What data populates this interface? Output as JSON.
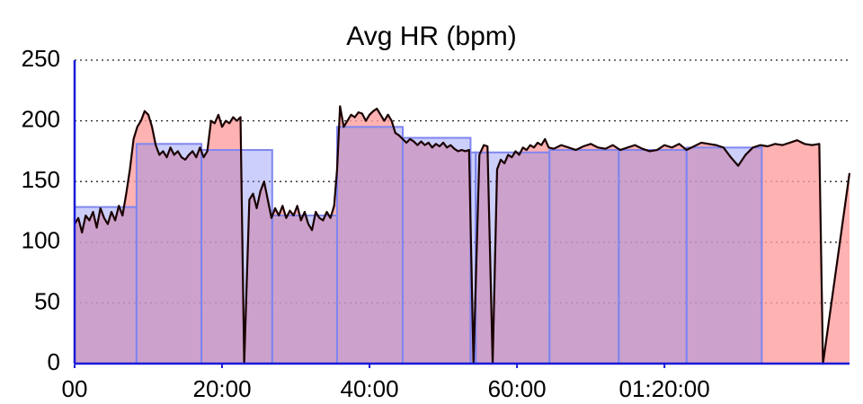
{
  "chart_data": {
    "type": "area",
    "title": "Avg HR (bpm)",
    "xlim": [
      0,
      105.1
    ],
    "ylim": [
      0,
      250
    ],
    "xticks": [
      {
        "value": 0,
        "label": "00"
      },
      {
        "value": 20,
        "label": "20:00"
      },
      {
        "value": 40,
        "label": "40:00"
      },
      {
        "value": 60,
        "label": "60:00"
      },
      {
        "value": 80,
        "label": "01:20:00"
      }
    ],
    "yticks": [
      0,
      50,
      100,
      150,
      200,
      250
    ],
    "grid": true,
    "series": [
      {
        "color": "#ff9f9f",
        "line_color": "#1a0000",
        "x": [
          0,
          0.5,
          1,
          1.5,
          2,
          2.5,
          3,
          3.5,
          4,
          4.5,
          5,
          5.5,
          6,
          6.5,
          7,
          7.5,
          8,
          8.5,
          9,
          9.5,
          10,
          10.5,
          11,
          11.5,
          12,
          12.5,
          13,
          13.5,
          14,
          14.5,
          15,
          15.5,
          16,
          16.5,
          17,
          17.5,
          18,
          18.5,
          19,
          19.5,
          20,
          20.5,
          21,
          21.5,
          22,
          22.5,
          23,
          23.7,
          24.2,
          24.7,
          25.2,
          25.7,
          26.2,
          26.7,
          27.2,
          27.7,
          28.2,
          28.7,
          29.2,
          29.7,
          30.2,
          30.7,
          31.2,
          31.7,
          32.2,
          32.7,
          33.2,
          33.7,
          34.2,
          34.7,
          35.2,
          35.6,
          36,
          36.5,
          37,
          37.5,
          38,
          38.5,
          39,
          39.5,
          40,
          40.5,
          41,
          41.5,
          42,
          42.5,
          43,
          43.5,
          44,
          44.5,
          45,
          45.5,
          46,
          46.5,
          47,
          47.5,
          48,
          48.5,
          49,
          49.5,
          50,
          50.5,
          51,
          51.5,
          52,
          52.5,
          53,
          53.5,
          54.1,
          54.9,
          55.5,
          56,
          56.7,
          57.3,
          57.8,
          58.3,
          58.8,
          59.3,
          59.8,
          60.3,
          60.8,
          61.3,
          61.8,
          62.3,
          62.8,
          63.3,
          63.8,
          64.3,
          65,
          66,
          67,
          68,
          69,
          70,
          71,
          72,
          73,
          74,
          75,
          76,
          77,
          78,
          79,
          80,
          81,
          82,
          83,
          84,
          85,
          86,
          87,
          88,
          89,
          90,
          91,
          92,
          93,
          94,
          95,
          96,
          97,
          98,
          99,
          100,
          101,
          101.5,
          105.1
        ],
        "values": [
          115,
          120,
          108,
          122,
          118,
          125,
          112,
          128,
          120,
          115,
          125,
          118,
          130,
          122,
          140,
          160,
          185,
          195,
          200,
          208,
          205,
          195,
          180,
          172,
          175,
          170,
          178,
          172,
          175,
          170,
          168,
          172,
          175,
          170,
          178,
          170,
          175,
          200,
          198,
          205,
          195,
          200,
          198,
          203,
          200,
          203,
          0,
          135,
          140,
          128,
          142,
          150,
          135,
          120,
          128,
          122,
          130,
          120,
          126,
          122,
          130,
          118,
          125,
          115,
          110,
          125,
          120,
          118,
          125,
          120,
          130,
          160,
          212,
          195,
          200,
          205,
          203,
          207,
          206,
          200,
          205,
          208,
          210,
          205,
          200,
          205,
          200,
          190,
          188,
          185,
          182,
          185,
          183,
          180,
          183,
          180,
          182,
          178,
          181,
          179,
          182,
          178,
          180,
          177,
          175,
          176,
          175,
          176,
          0,
          172,
          180,
          179,
          0,
          160,
          168,
          165,
          172,
          170,
          175,
          172,
          178,
          176,
          180,
          178,
          182,
          180,
          185,
          178,
          177,
          180,
          178,
          176,
          179,
          181,
          178,
          177,
          180,
          176,
          178,
          180,
          177,
          175,
          176,
          180,
          178,
          181,
          176,
          179,
          182,
          181,
          180,
          178,
          170,
          163,
          172,
          178,
          180,
          179,
          181,
          180,
          182,
          184,
          181,
          180,
          181,
          0,
          157
        ]
      }
    ],
    "laps": {
      "color": "#7f86f0",
      "bins": [
        0,
        8.4,
        17.2,
        26.8,
        35.6,
        44.5,
        53.7,
        54.4,
        64.4,
        73.8,
        83.0,
        93.2
      ],
      "values": [
        129,
        181,
        176,
        122,
        195,
        186,
        174,
        174,
        176,
        176,
        178
      ]
    }
  }
}
